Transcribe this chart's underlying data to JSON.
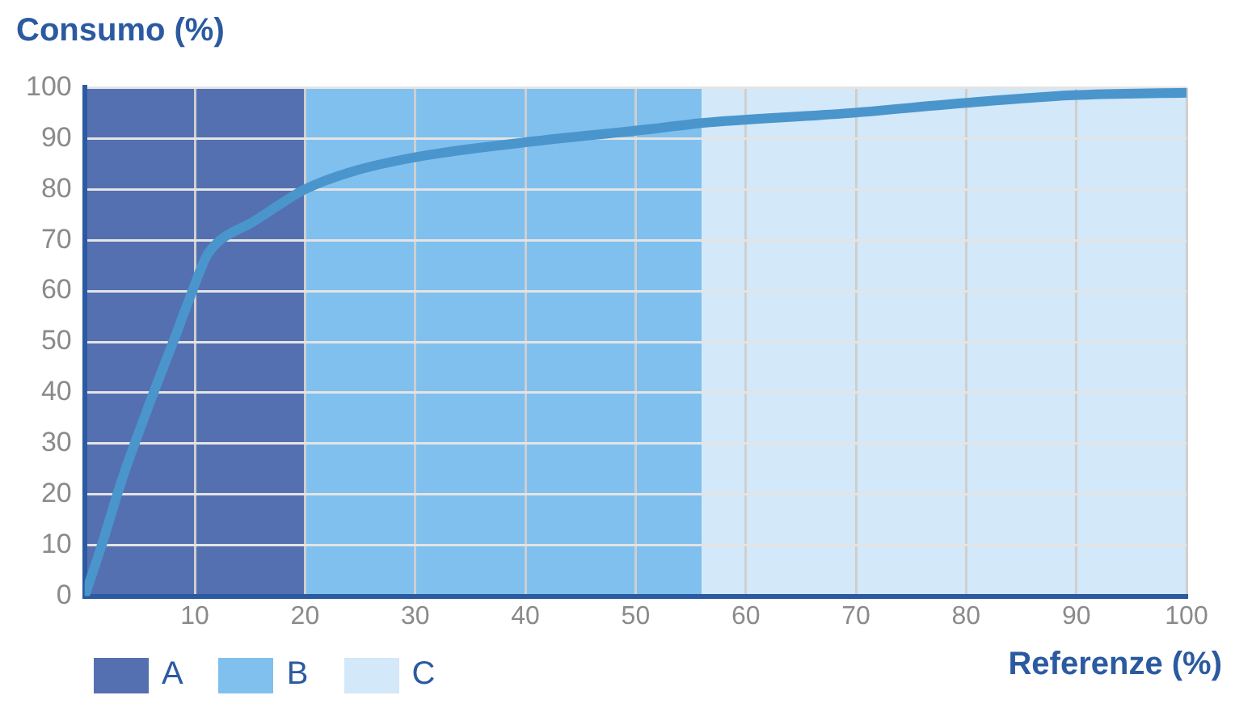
{
  "chart_data": {
    "type": "line",
    "ylabel": "Consumo (%)",
    "xlabel": "Referenze (%)",
    "x": [
      0,
      1.4,
      3.4,
      6,
      8.3,
      9.6,
      11.1,
      12.3,
      15.2,
      20,
      24.3,
      30.5,
      41,
      52,
      55.8,
      69.5,
      80,
      89.7,
      100
    ],
    "series": [
      {
        "color": "#4a95cc",
        "values": [
          0,
          9,
          23,
          38.5,
          51.5,
          59,
          67,
          70,
          73.5,
          80,
          83.5,
          86.5,
          89.5,
          92,
          93,
          95,
          97,
          98.5,
          99
        ]
      }
    ],
    "bands": [
      {
        "axis": "x",
        "from": 0,
        "to": 20,
        "label": "A",
        "color": "#5470b0"
      },
      {
        "axis": "x",
        "from": 20,
        "to": 56,
        "label": "B",
        "color": "#80c0ee"
      },
      {
        "axis": "x",
        "from": 56,
        "to": 100,
        "label": "C",
        "color": "#d3e8f8"
      }
    ],
    "xlim": [
      0,
      100
    ],
    "ylim": [
      0,
      100
    ],
    "xticks": [
      {
        "value": 0,
        "label": null
      },
      10,
      20,
      30,
      40,
      50,
      60,
      70,
      80,
      90,
      100
    ],
    "yticks": [
      0,
      10,
      20,
      30,
      40,
      50,
      60,
      70,
      80,
      90,
      100
    ],
    "grid": true,
    "legend": "bottom left",
    "marker": "none",
    "line_style": "solid"
  }
}
